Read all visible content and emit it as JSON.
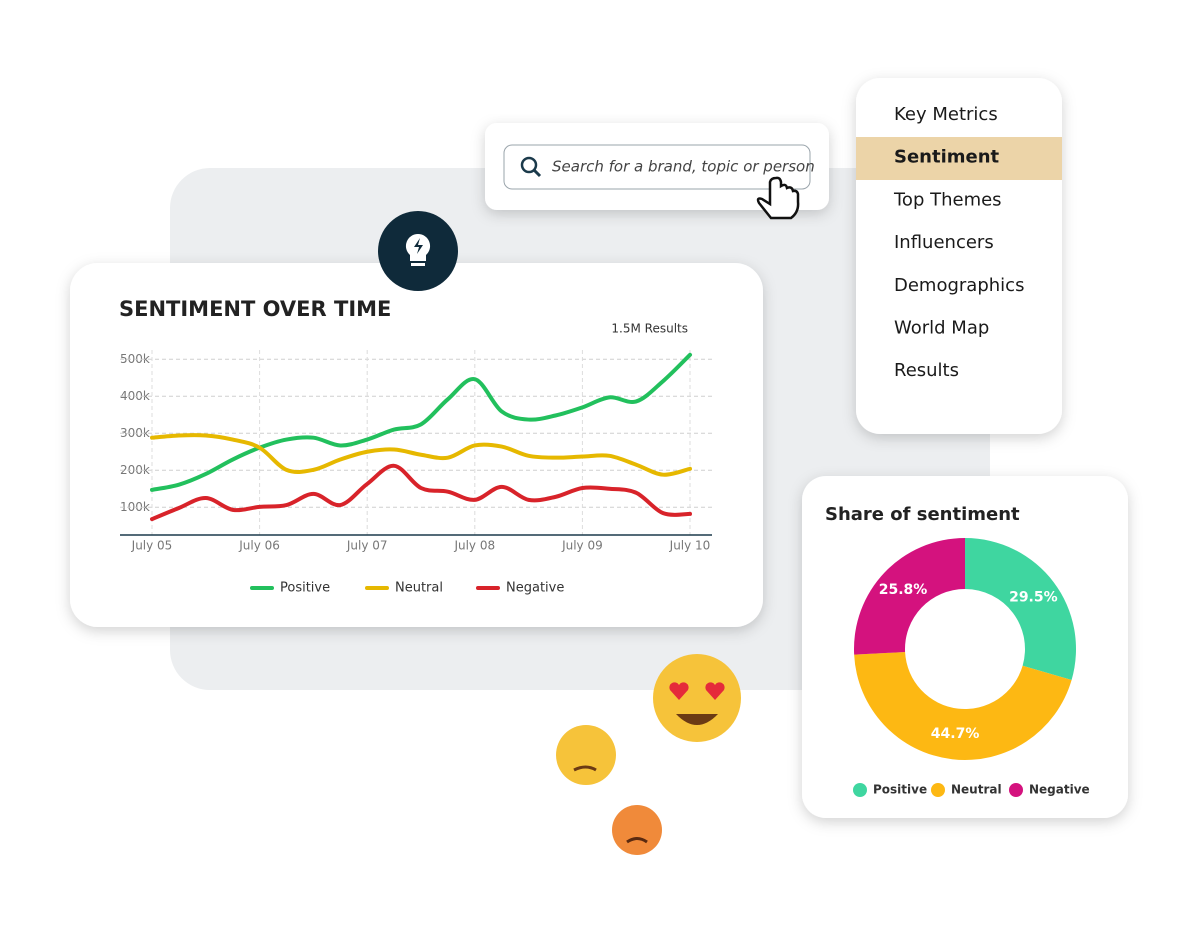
{
  "search": {
    "placeholder": "Search for a brand, topic or person"
  },
  "menu": {
    "items": [
      "Key Metrics",
      "Sentiment",
      "Top Themes",
      "Influencers",
      "Demographics",
      "World Map",
      "Results"
    ]
  },
  "chart_data": [
    {
      "type": "line",
      "title": "SENTIMENT OVER TIME",
      "subtitle": "1.5M Results",
      "categories": [
        "July 05",
        null,
        null,
        null,
        "July 06",
        null,
        null,
        null,
        "July 07",
        null,
        null,
        null,
        "July 08",
        null,
        null,
        null,
        "July 09",
        null,
        null,
        null,
        "July 10"
      ],
      "ylim": [
        25,
        525
      ],
      "yticks": [
        {
          "value": 100,
          "label": "100k"
        },
        {
          "value": 200,
          "label": "200k"
        },
        {
          "value": 300,
          "label": "300k"
        },
        {
          "value": 400,
          "label": "400k"
        },
        {
          "value": 500,
          "label": "500k"
        }
      ],
      "grid": true,
      "series": [
        {
          "name": "Positive",
          "color": "#22c05d",
          "values": [
            147,
            161,
            190,
            229,
            261,
            283,
            288,
            267,
            283,
            310,
            324,
            392,
            446,
            359,
            337,
            348,
            370,
            397,
            386,
            441,
            512
          ]
        },
        {
          "name": "Neutral",
          "color": "#e6b800",
          "values": [
            288,
            294,
            294,
            283,
            261,
            201,
            201,
            229,
            250,
            256,
            242,
            234,
            267,
            264,
            239,
            234,
            237,
            239,
            215,
            188,
            204
          ]
        },
        {
          "name": "Negative",
          "color": "#d8232a",
          "values": [
            68,
            98,
            125,
            93,
            101,
            106,
            136,
            106,
            163,
            212,
            152,
            142,
            120,
            155,
            120,
            128,
            152,
            150,
            139,
            84,
            82
          ]
        }
      ]
    },
    {
      "type": "pie",
      "title": "Share of sentiment",
      "donut": true,
      "categories": [
        "Positive",
        "Neutral",
        "Negative"
      ],
      "values": [
        29.5,
        44.7,
        25.8
      ],
      "value_labels": [
        "29.5%",
        "44.7%",
        "25.8%"
      ],
      "colors": [
        "#3fd6a0",
        "#fdb813",
        "#d4127e"
      ]
    }
  ]
}
